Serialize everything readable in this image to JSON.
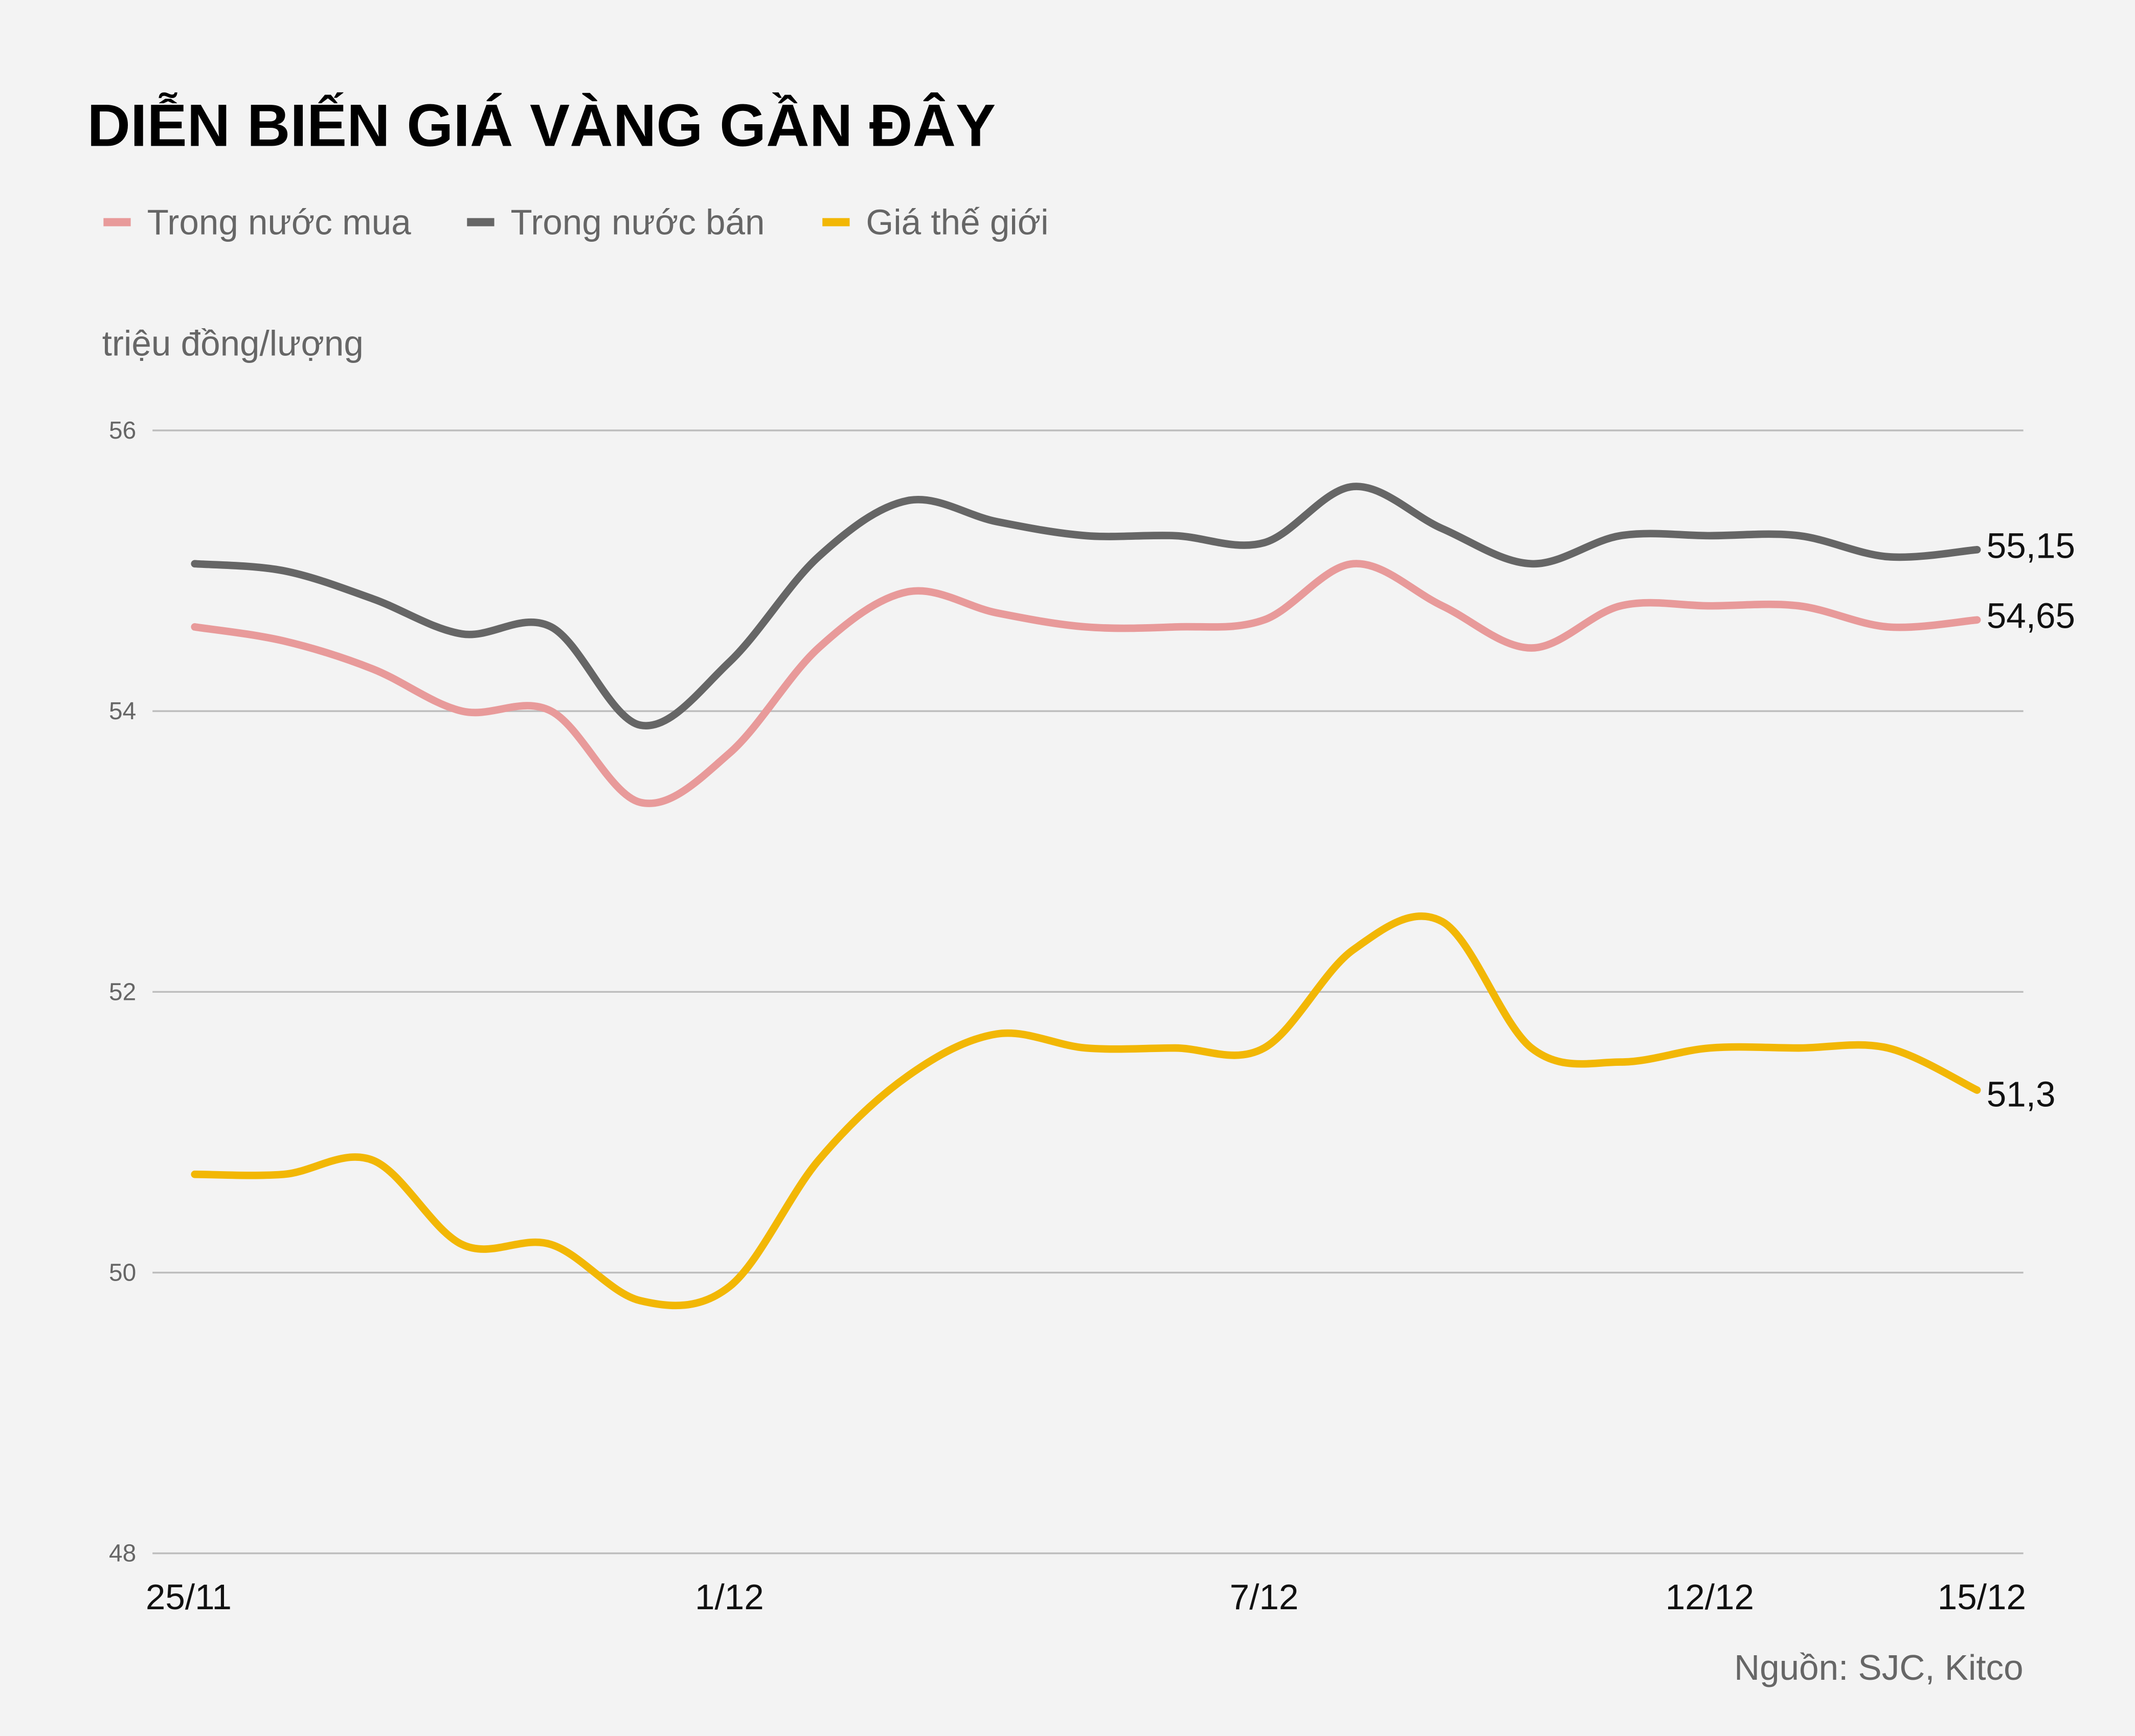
{
  "chart_data": {
    "type": "line",
    "title": "DIỄN BIẾN GIÁ VÀNG GẦN ĐÂY",
    "ylabel": "triệu đồng/lượng",
    "xlabel": "",
    "source": "Nguồn: SJC, Kitco",
    "ylim": [
      48,
      56
    ],
    "yticks": [
      "48",
      "50",
      "52",
      "54",
      "56"
    ],
    "grid": true,
    "legend_placement": "top-left",
    "x": [
      "25/11",
      "26/11",
      "27/11",
      "28/11",
      "29/11",
      "30/11",
      "1/12",
      "2/12",
      "3/12",
      "4/12",
      "5/12",
      "6/12",
      "7/12",
      "8/12",
      "9/12",
      "10/12",
      "11/12",
      "12/12",
      "13/12",
      "14/12",
      "15/12"
    ],
    "xtick_labels": [
      {
        "label": "25/11",
        "index": 0
      },
      {
        "label": "1/12",
        "index": 6
      },
      {
        "label": "7/12",
        "index": 12
      },
      {
        "label": "12/12",
        "index": 17
      },
      {
        "label": "15/12",
        "index": 20
      }
    ],
    "series": [
      {
        "name": "Trong nước mua",
        "color": "#e89a9a",
        "end_label": "54,65",
        "values": [
          54.6,
          54.5,
          54.3,
          54.0,
          54.0,
          53.35,
          53.7,
          54.45,
          54.85,
          54.7,
          54.6,
          54.6,
          54.65,
          55.05,
          54.75,
          54.45,
          54.75,
          54.75,
          54.75,
          54.6,
          54.65
        ]
      },
      {
        "name": "Trong nước bán",
        "color": "#666666",
        "end_label": "55,15",
        "values": [
          55.05,
          55.0,
          54.8,
          54.55,
          54.6,
          53.9,
          54.35,
          55.1,
          55.5,
          55.35,
          55.25,
          55.25,
          55.2,
          55.6,
          55.3,
          55.05,
          55.25,
          55.25,
          55.25,
          55.1,
          55.15
        ]
      },
      {
        "name": "Giá thế giới",
        "color": "#f2b705",
        "end_label": "51,3",
        "values": [
          50.7,
          50.7,
          50.8,
          50.2,
          50.2,
          49.8,
          49.9,
          50.8,
          51.4,
          51.7,
          51.6,
          51.6,
          51.6,
          52.3,
          52.5,
          51.6,
          51.5,
          51.6,
          51.6,
          51.6,
          51.3
        ]
      }
    ]
  }
}
